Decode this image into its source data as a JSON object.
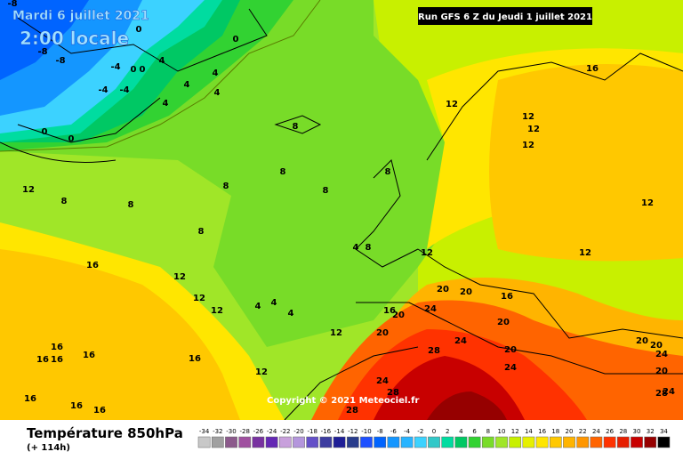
{
  "header": {
    "date": "Mardi 6 juillet 2021",
    "local_time": "2:00 locale",
    "run": "Run GFS 6 Z du Jeudi 1 juillet 2021",
    "copyright": "Copyright © 2021 Meteociel.fr"
  },
  "footer": {
    "title": "Température 850hPa",
    "lead": "(+ 114h)"
  },
  "scale": {
    "values": [
      -34,
      -32,
      -30,
      -28,
      -26,
      -24,
      -22,
      -20,
      -18,
      -16,
      -14,
      -12,
      -10,
      -8,
      -6,
      -4,
      -2,
      0,
      2,
      4,
      6,
      8,
      10,
      12,
      14,
      16,
      18,
      20,
      22,
      24,
      26,
      28,
      30,
      32,
      34
    ],
    "colors": [
      "#c8c8c8",
      "#a0a0a0",
      "#8c5a8c",
      "#a050a0",
      "#7832a0",
      "#6428b4",
      "#c8a0dc",
      "#b496dc",
      "#6450c8",
      "#3c3ca0",
      "#1e1e96",
      "#283c8c",
      "#1e50ff",
      "#0064ff",
      "#1496ff",
      "#28b4ff",
      "#3cd2ff",
      "#32c8c8",
      "#00dca0",
      "#00c864",
      "#32d232",
      "#78dc28",
      "#a0e628",
      "#c8f000",
      "#e6f000",
      "#ffe600",
      "#ffc800",
      "#ffb400",
      "#ff9600",
      "#ff6400",
      "#ff3200",
      "#e61e00",
      "#c80000",
      "#960000",
      "#000000"
    ]
  },
  "contour_labels": [
    -8,
    -8,
    -8,
    0,
    0,
    -4,
    0,
    0,
    4,
    4,
    4,
    4,
    -4,
    -4,
    4,
    0,
    0,
    8,
    8,
    8,
    8,
    8,
    8,
    8,
    12,
    16,
    12,
    12,
    12,
    12,
    12,
    12,
    12,
    8,
    4,
    8,
    16,
    12,
    12,
    12,
    4,
    4,
    4,
    12,
    16,
    20,
    20,
    24,
    20,
    16,
    20,
    20,
    28,
    24,
    20,
    24,
    16,
    16,
    16,
    16,
    16,
    12,
    24,
    28,
    28,
    16,
    16,
    16,
    20,
    20,
    24,
    20,
    24,
    28
  ]
}
